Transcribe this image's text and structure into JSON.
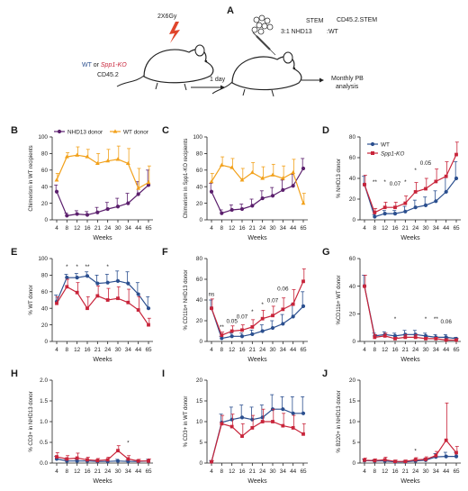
{
  "colors": {
    "wt_blue": "#2b4f8f",
    "ko_red": "#c8243a",
    "nhd13_purple": "#5b1f6d",
    "wt_orange": "#f2a11b",
    "axis": "#222222"
  },
  "panelA": {
    "label": "A",
    "dose": "2X6Gy",
    "wt_text": "WT",
    "or_text": " or ",
    "ko_text": "Spp1-KO",
    "cd452": "CD45.2",
    "stem1": "STEM",
    "ratio": "3:1 NHD13",
    "cd452stem": "CD45.2.STEM",
    "wt2": ":WT",
    "oneday": "1 day",
    "monthly1": "Monthly PB",
    "monthly2": "analysis"
  },
  "xlabel": "Weeks",
  "chart_data": [
    {
      "id": "B",
      "type": "line",
      "ylabel": "Chimerism in WT recipients",
      "ylim": [
        0,
        100
      ],
      "yticks": [
        0,
        20,
        40,
        60,
        80,
        100
      ],
      "categories": [
        "4",
        "8",
        "12",
        "16",
        "21",
        "24",
        "30",
        "34",
        "44",
        "65"
      ],
      "legend": {
        "placement": "top",
        "entries": [
          "NHD13 donor",
          "WT donor"
        ]
      },
      "series": [
        {
          "name": "NHD13 donor",
          "color": "#5b1f6d",
          "marker": "circle",
          "values": [
            34,
            5,
            7,
            6,
            9,
            13,
            16,
            20,
            31,
            42
          ],
          "err": [
            8,
            3,
            4,
            4,
            6,
            8,
            10,
            12,
            15,
            18
          ]
        },
        {
          "name": "WT donor",
          "color": "#f2a11b",
          "marker": "triangle",
          "values": [
            48,
            76,
            78,
            76,
            68,
            71,
            73,
            68,
            38,
            45
          ],
          "err": [
            8,
            5,
            10,
            9,
            12,
            14,
            16,
            18,
            24,
            20
          ]
        }
      ],
      "annotations": []
    },
    {
      "id": "C",
      "type": "line",
      "ylabel": "Chimerism in Spp1-KO recipients",
      "ylim": [
        0,
        100
      ],
      "yticks": [
        0,
        20,
        40,
        60,
        80,
        100
      ],
      "categories": [
        "4",
        "8",
        "12",
        "16",
        "21",
        "24",
        "30",
        "34",
        "44",
        "65"
      ],
      "series": [
        {
          "name": "NHD13 donor",
          "color": "#5b1f6d",
          "marker": "circle",
          "values": [
            34,
            8,
            12,
            13,
            17,
            26,
            29,
            36,
            41,
            62
          ],
          "err": [
            10,
            4,
            6,
            6,
            8,
            9,
            10,
            12,
            14,
            12
          ]
        },
        {
          "name": "WT donor",
          "color": "#f2a11b",
          "marker": "triangle",
          "values": [
            46,
            66,
            63,
            48,
            57,
            50,
            54,
            50,
            57,
            20
          ],
          "err": [
            10,
            10,
            11,
            14,
            12,
            14,
            13,
            15,
            16,
            12
          ]
        }
      ],
      "annotations": []
    },
    {
      "id": "D",
      "type": "line",
      "ylabel": "% NHD13 donor",
      "ylim": [
        0,
        80
      ],
      "yticks": [
        0,
        20,
        40,
        60,
        80
      ],
      "categories": [
        "4",
        "8",
        "12",
        "16",
        "21",
        "24",
        "30",
        "34",
        "44",
        "65"
      ],
      "legend": {
        "placement": "top-left",
        "entries": [
          "WT",
          "Spp1-KO"
        ]
      },
      "series": [
        {
          "name": "WT",
          "color": "#2b4f8f",
          "marker": "circle",
          "values": [
            34,
            3,
            6,
            6,
            8,
            12,
            14,
            18,
            27,
            40
          ],
          "err": [
            8,
            2,
            3,
            3,
            5,
            7,
            8,
            10,
            14,
            16
          ]
        },
        {
          "name": "Spp1-KO",
          "color": "#c8243a",
          "marker": "square",
          "values": [
            34,
            7,
            12,
            12,
            16,
            27,
            30,
            37,
            42,
            63
          ],
          "err": [
            9,
            4,
            5,
            5,
            7,
            9,
            10,
            12,
            14,
            12
          ]
        }
      ],
      "annotations": [
        {
          "x": "8",
          "text": "**",
          "y": 35
        },
        {
          "x": "12",
          "text": "*",
          "y": 35
        },
        {
          "x": "16",
          "text": "0.07",
          "y": 33
        },
        {
          "x": "21",
          "text": "*",
          "y": 35
        },
        {
          "x": "24",
          "text": "*",
          "y": 46
        },
        {
          "x": "30",
          "text": "0.05",
          "y": 53
        }
      ]
    },
    {
      "id": "E",
      "type": "line",
      "ylabel": "% WT donor",
      "ylim": [
        0,
        100
      ],
      "yticks": [
        0,
        20,
        40,
        60,
        80,
        100
      ],
      "categories": [
        "4",
        "8",
        "12",
        "16",
        "21",
        "24",
        "30",
        "34",
        "44",
        "65"
      ],
      "series": [
        {
          "name": "WT",
          "color": "#2b4f8f",
          "marker": "circle",
          "values": [
            48,
            77,
            77,
            79,
            70,
            71,
            73,
            70,
            57,
            40
          ],
          "err": [
            8,
            4,
            5,
            5,
            10,
            10,
            12,
            14,
            14,
            14
          ]
        },
        {
          "name": "Spp1-KO",
          "color": "#c8243a",
          "marker": "square",
          "values": [
            46,
            66,
            59,
            40,
            55,
            50,
            52,
            47,
            38,
            20
          ],
          "err": [
            8,
            9,
            12,
            14,
            12,
            14,
            14,
            16,
            16,
            8
          ]
        }
      ],
      "annotations": [
        {
          "x": "8",
          "text": "*",
          "y": 88
        },
        {
          "x": "12",
          "text": "*",
          "y": 88
        },
        {
          "x": "16",
          "text": "**",
          "y": 88
        },
        {
          "x": "24",
          "text": "*",
          "y": 88
        }
      ]
    },
    {
      "id": "F",
      "type": "line",
      "ylabel": "% CD11b+ NHD13 donor",
      "ylim": [
        0,
        80
      ],
      "yticks": [
        0,
        20,
        40,
        60,
        80
      ],
      "categories": [
        "4",
        "8",
        "12",
        "16",
        "21",
        "24",
        "30",
        "34",
        "44",
        "65"
      ],
      "series": [
        {
          "name": "WT",
          "color": "#2b4f8f",
          "marker": "circle",
          "values": [
            32,
            3,
            5,
            5,
            7,
            10,
            13,
            17,
            24,
            34
          ],
          "err": [
            8,
            2,
            3,
            3,
            4,
            6,
            7,
            9,
            12,
            14
          ]
        },
        {
          "name": "Spp1-KO",
          "color": "#c8243a",
          "marker": "square",
          "values": [
            32,
            6,
            10,
            11,
            14,
            22,
            25,
            31,
            36,
            58
          ],
          "err": [
            9,
            3,
            5,
            5,
            7,
            8,
            9,
            11,
            14,
            12
          ]
        }
      ],
      "annotations": [
        {
          "x": "4",
          "text": "ns",
          "y": 44
        },
        {
          "x": "8",
          "text": "**",
          "y": 12
        },
        {
          "x": "12",
          "text": "0.05",
          "y": 18
        },
        {
          "x": "16",
          "text": "0.07",
          "y": 22
        },
        {
          "x": "21",
          "text": "*",
          "y": 27
        },
        {
          "x": "24",
          "text": "*",
          "y": 34
        },
        {
          "x": "30",
          "text": "0.07",
          "y": 38
        },
        {
          "x": "34",
          "text": "0.06",
          "y": 49
        }
      ]
    },
    {
      "id": "G",
      "type": "line",
      "ylabel": "%CD11b+ WT donor",
      "ylim": [
        0,
        60
      ],
      "yticks": [
        0,
        20,
        40,
        60
      ],
      "categories": [
        "4",
        "8",
        "12",
        "16",
        "21",
        "24",
        "30",
        "34",
        "44",
        "65"
      ],
      "series": [
        {
          "name": "WT",
          "color": "#2b4f8f",
          "marker": "circle",
          "values": [
            40,
            4,
            5,
            4,
            5,
            5,
            4,
            3,
            3,
            2
          ],
          "err": [
            8,
            2,
            2,
            2,
            3,
            3,
            2,
            2,
            2,
            1
          ]
        },
        {
          "name": "Spp1-KO",
          "color": "#c8243a",
          "marker": "square",
          "values": [
            40,
            3,
            4,
            2,
            3,
            3,
            2,
            2,
            1,
            1
          ],
          "err": [
            8,
            2,
            2,
            1,
            2,
            2,
            1,
            1,
            1,
            1
          ]
        }
      ],
      "annotations": [
        {
          "x": "16",
          "text": "*",
          "y": 15
        },
        {
          "x": "30",
          "text": "*",
          "y": 15
        },
        {
          "x": "34",
          "text": "**",
          "y": 15
        },
        {
          "x": "44",
          "text": "0.06",
          "y": 13
        }
      ]
    },
    {
      "id": "H",
      "type": "line",
      "ylabel": "% CD3+ in NHD13 donor",
      "ylim": [
        0,
        2.0
      ],
      "yticks": [
        0.0,
        0.5,
        1.0,
        1.5,
        2.0
      ],
      "categories": [
        "4",
        "8",
        "12",
        "16",
        "21",
        "24",
        "30",
        "34",
        "44",
        "65"
      ],
      "series": [
        {
          "name": "WT",
          "color": "#2b4f8f",
          "marker": "circle",
          "values": [
            0.1,
            0.05,
            0.05,
            0.05,
            0.04,
            0.04,
            0.05,
            0.04,
            0.04,
            0.05
          ],
          "err": [
            0.06,
            0.04,
            0.04,
            0.04,
            0.03,
            0.03,
            0.04,
            0.03,
            0.03,
            0.04
          ]
        },
        {
          "name": "Spp1-KO",
          "color": "#c8243a",
          "marker": "square",
          "values": [
            0.15,
            0.1,
            0.12,
            0.08,
            0.06,
            0.08,
            0.3,
            0.1,
            0.05,
            0.05
          ],
          "err": [
            0.1,
            0.08,
            0.12,
            0.06,
            0.05,
            0.06,
            0.12,
            0.08,
            0.04,
            0.05
          ]
        }
      ],
      "annotations": [
        {
          "x": "34",
          "text": "*",
          "y": 0.45
        }
      ]
    },
    {
      "id": "I",
      "type": "line",
      "ylabel": "% CD3+ in WT donor",
      "ylim": [
        0,
        20
      ],
      "yticks": [
        0,
        5,
        10,
        15,
        20
      ],
      "categories": [
        "4",
        "8",
        "12",
        "16",
        "21",
        "24",
        "30",
        "34",
        "44",
        "65"
      ],
      "series": [
        {
          "name": "WT",
          "color": "#2b4f8f",
          "marker": "circle",
          "values": [
            0.3,
            9.8,
            10.5,
            11,
            10.5,
            11,
            13,
            13,
            12,
            12
          ],
          "err": [
            0.3,
            2,
            3,
            3,
            3,
            3,
            3.5,
            3,
            4,
            4
          ]
        },
        {
          "name": "Spp1-KO",
          "color": "#c8243a",
          "marker": "square",
          "values": [
            0.3,
            9.5,
            8.8,
            6.5,
            8.5,
            10,
            10,
            9,
            8.5,
            7
          ],
          "err": [
            0.3,
            2,
            3,
            3,
            3,
            3,
            3,
            3,
            3,
            2.5
          ]
        }
      ],
      "annotations": []
    },
    {
      "id": "J",
      "type": "line",
      "ylabel": "% B220+ in NHD13 donor",
      "ylim": [
        0,
        20
      ],
      "yticks": [
        0,
        5,
        10,
        15,
        20
      ],
      "categories": [
        "4",
        "8",
        "12",
        "16",
        "21",
        "24",
        "30",
        "34",
        "44",
        "65"
      ],
      "series": [
        {
          "name": "WT",
          "color": "#2b4f8f",
          "marker": "circle",
          "values": [
            0.6,
            0.5,
            0.5,
            0.3,
            0.3,
            0.5,
            0.7,
            1.5,
            1.6,
            1.6
          ],
          "err": [
            0.4,
            0.3,
            0.3,
            0.2,
            0.2,
            0.3,
            0.4,
            0.8,
            1,
            1
          ]
        },
        {
          "name": "Spp1-KO",
          "color": "#c8243a",
          "marker": "square",
          "values": [
            0.7,
            0.6,
            0.8,
            0.4,
            0.4,
            0.8,
            0.9,
            1.8,
            5.5,
            2.5
          ],
          "err": [
            0.5,
            0.4,
            0.6,
            0.3,
            0.3,
            0.5,
            0.6,
            1,
            9,
            1.5
          ]
        }
      ],
      "annotations": [
        {
          "x": "24",
          "text": "*",
          "y": 2.5
        }
      ]
    }
  ]
}
